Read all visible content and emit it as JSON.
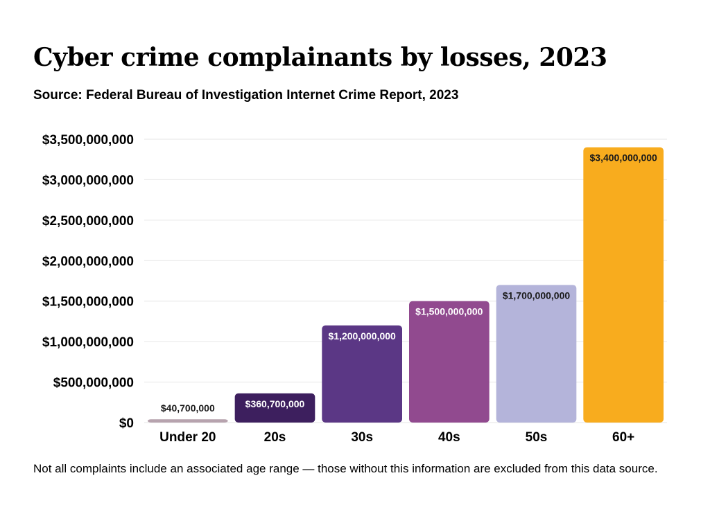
{
  "title": "Cyber crime complainants by losses, 2023",
  "subtitle": "Source: Federal Bureau of Investigation Internet Crime Report, 2023",
  "note": "Not all complaints include an associated age range — those without this information are excluded from this data source.",
  "colors": {
    "grid": "#e6e6e6",
    "label_dark_text": "#1a1a1a",
    "label_light_text": "#ffffff"
  },
  "chart_data": {
    "type": "bar",
    "title": "Cyber crime complainants by losses, 2023",
    "subtitle": "Source: Federal Bureau of Investigation Internet Crime Report, 2023",
    "xlabel": "",
    "ylabel": "",
    "categories": [
      "Under 20",
      "20s",
      "30s",
      "40s",
      "50s",
      "60+"
    ],
    "values": [
      40700000,
      360700000,
      1200000000,
      1500000000,
      1700000000,
      3400000000
    ],
    "value_labels": [
      "$40,700,000",
      "$360,700,000",
      "$1,200,000,000",
      "$1,500,000,000",
      "$1,700,000,000",
      "$3,400,000,000"
    ],
    "bar_colors": [
      "#b7a3ae",
      "#3d1f5e",
      "#5b3785",
      "#914a8f",
      "#b4b4da",
      "#f8ac1e"
    ],
    "label_text_colors": [
      "#1a1a1a",
      "#ffffff",
      "#ffffff",
      "#ffffff",
      "#1a1a1a",
      "#1a1a1a"
    ],
    "ylim": [
      0,
      3500000000
    ],
    "yticks": [
      0,
      500000000,
      1000000000,
      1500000000,
      2000000000,
      2500000000,
      3000000000,
      3500000000
    ],
    "ytick_labels": [
      "$0",
      "$500,000,000",
      "$1,000,000,000",
      "$1,500,000,000",
      "$2,000,000,000",
      "$2,500,000,000",
      "$3,000,000,000",
      "$3,500,000,000"
    ],
    "grid": true,
    "legend": "none"
  }
}
